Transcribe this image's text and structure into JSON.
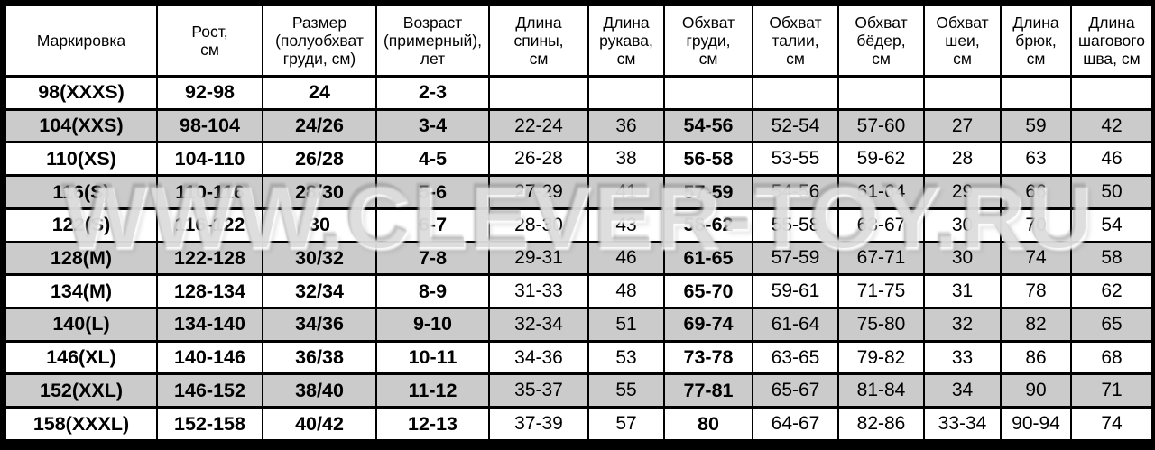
{
  "watermark": {
    "text": "WWW.CLEVER-TOY.RU"
  },
  "chart_data": {
    "type": "table",
    "columns": [
      "Маркировка",
      "Рост,\nсм",
      "Размер\n(полуобхват\nгруди, см)",
      "Возраст\n(примерный),\nлет",
      "Длина\nспины,\nсм",
      "Длина\nрукава,\nсм",
      "Обхват\nгруди,\nсм",
      "Обхват\nталии,\nсм",
      "Обхват\nбёдер,\nсм",
      "Обхват\nшеи,\nсм",
      "Длина\nбрюк,\nсм",
      "Длина\nшагового\nшва, см"
    ],
    "rows": [
      [
        "98(XXXS)",
        "92-98",
        "24",
        "2-3",
        "",
        "",
        "",
        "",
        "",
        "",
        "",
        ""
      ],
      [
        "104(XXS)",
        "98-104",
        "24/26",
        "3-4",
        "22-24",
        "36",
        "54-56",
        "52-54",
        "57-60",
        "27",
        "59",
        "42"
      ],
      [
        "110(XS)",
        "104-110",
        "26/28",
        "4-5",
        "26-28",
        "38",
        "56-58",
        "53-55",
        "59-62",
        "28",
        "63",
        "46"
      ],
      [
        "116(S)",
        "110-116",
        "28/30",
        "5-6",
        "27-29",
        "41",
        "57-59",
        "54-56",
        "61-64",
        "29",
        "66",
        "50"
      ],
      [
        "122(S)",
        "116-122",
        "30",
        "6-7",
        "28-30",
        "43",
        "58-62",
        "55-58",
        "63-67",
        "30",
        "70",
        "54"
      ],
      [
        "128(M)",
        "122-128",
        "30/32",
        "7-8",
        "29-31",
        "46",
        "61-65",
        "57-59",
        "67-71",
        "30",
        "74",
        "58"
      ],
      [
        "134(M)",
        "128-134",
        "32/34",
        "8-9",
        "31-33",
        "48",
        "65-70",
        "59-61",
        "71-75",
        "31",
        "78",
        "62"
      ],
      [
        "140(L)",
        "134-140",
        "34/36",
        "9-10",
        "32-34",
        "51",
        "69-74",
        "61-64",
        "75-80",
        "32",
        "82",
        "65"
      ],
      [
        "146(XL)",
        "140-146",
        "36/38",
        "10-11",
        "34-36",
        "53",
        "73-78",
        "63-65",
        "79-82",
        "33",
        "86",
        "68"
      ],
      [
        "152(XXL)",
        "146-152",
        "38/40",
        "11-12",
        "35-37",
        "55",
        "77-81",
        "65-67",
        "81-84",
        "34",
        "90",
        "71"
      ],
      [
        "158(XXXL)",
        "152-158",
        "40/42",
        "12-13",
        "37-39",
        "57",
        "80",
        "64-67",
        "82-86",
        "33-34",
        "90-94",
        "74"
      ]
    ],
    "layout": {
      "striped_row_color": "#cbcbcb",
      "border_color": "#000000",
      "bold_columns": [
        0,
        1,
        2,
        3,
        6
      ],
      "striped_rows": "every second data row starting with 104(XXS)"
    }
  }
}
